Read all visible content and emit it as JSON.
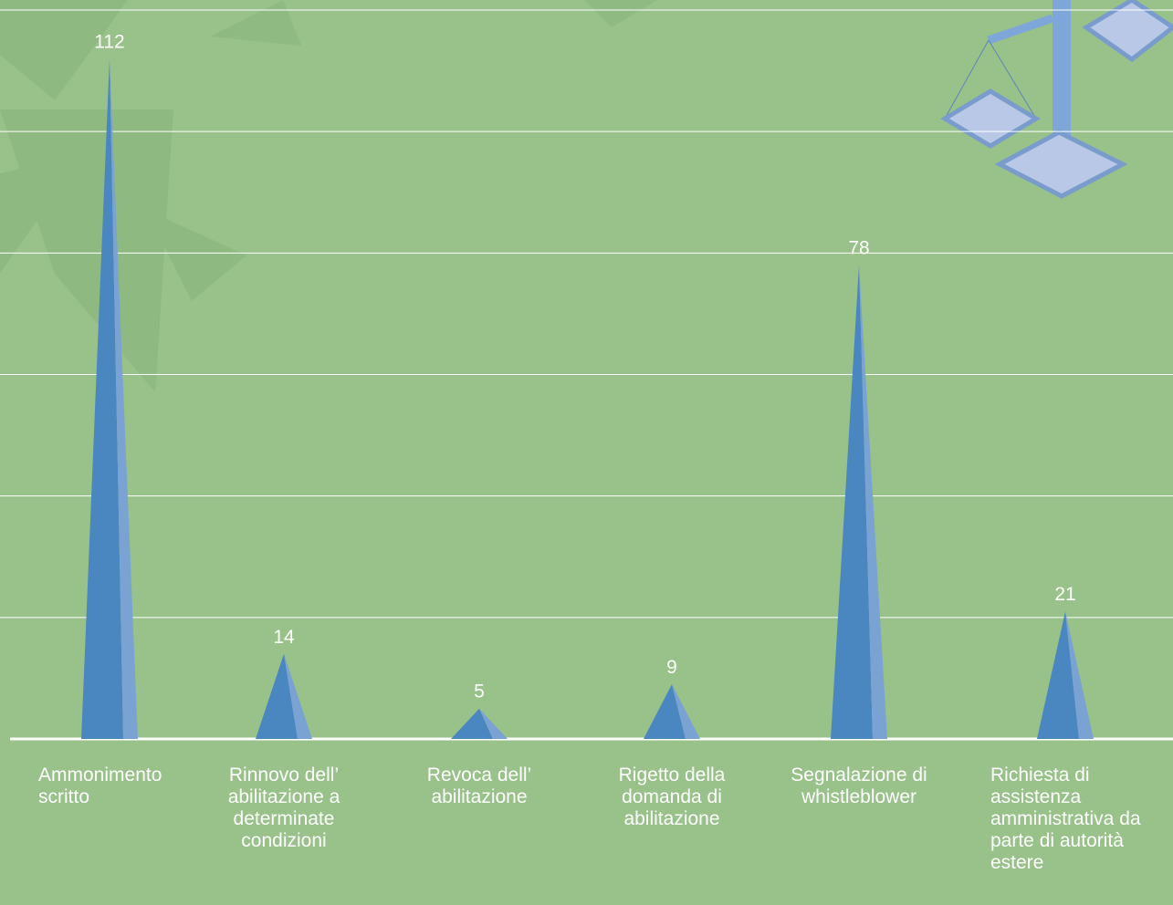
{
  "chart_data": {
    "type": "bar",
    "categories": [
      "Ammonimento scritto",
      "Rinnovo dell’ abilitazione a determinate condizioni",
      "Revoca dell’ abilitazione",
      "Rigetto della domanda di abilitazione",
      "Segnalazione di whistleblower",
      "Richiesta di assistenza amministrativa da parte di autorità estere"
    ],
    "values": [
      112,
      14,
      5,
      9,
      78,
      21
    ],
    "color": "#4a86c0",
    "ylim": [
      0,
      120
    ],
    "yticks": [
      0,
      20,
      40,
      60,
      80,
      100,
      120
    ],
    "grid": true
  }
}
